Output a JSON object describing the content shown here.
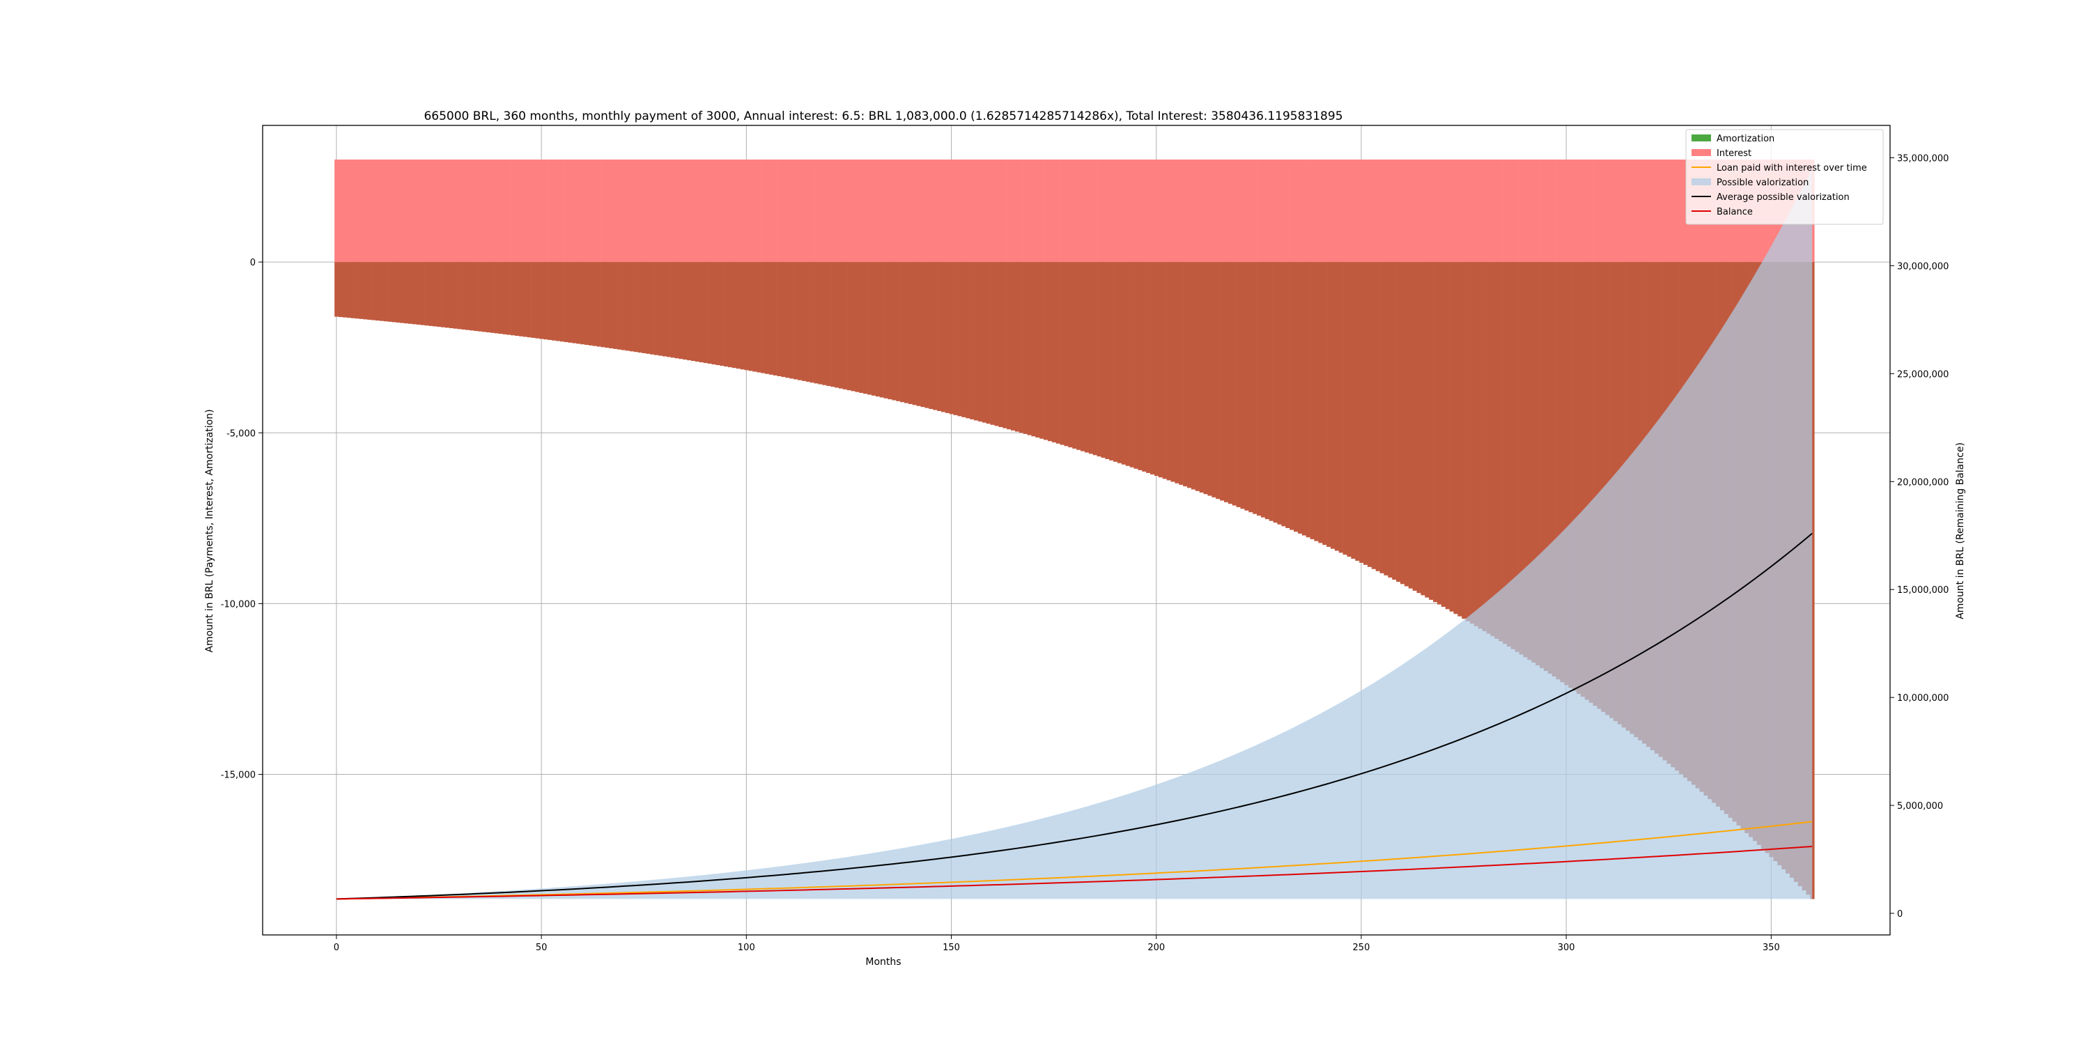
{
  "chart_data": {
    "type": "bar",
    "title": "665000 BRL, 360 months, monthly payment of 3000, Annual interest: 6.5: BRL 1,083,000.0 (1.6285714285714286x), Total Interest: 3580436.1195831895",
    "xlabel": "Months",
    "ylabel_left": "Amount in BRL (Payments, Interest, Amortization)",
    "ylabel_right": "Amount in BRL (Remaining Balance)",
    "xlim": [
      -18,
      379
    ],
    "ylim_left": [
      -19700,
      4000
    ],
    "ylim_right": [
      -1000000,
      36500000
    ],
    "grid": true,
    "legend_position": "upper right",
    "x_ticks": [
      0,
      50,
      100,
      150,
      200,
      250,
      300,
      350
    ],
    "y_left_ticks": [
      0,
      -5000,
      -10000,
      -15000
    ],
    "y_left_tick_labels": [
      "0",
      "-5,000",
      "-10,000",
      "-15,000"
    ],
    "y_right_ticks": [
      0,
      5000000,
      10000000,
      15000000,
      20000000,
      25000000,
      30000000,
      35000000
    ],
    "y_right_tick_labels": [
      "0",
      "5,000,000",
      "10,000,000",
      "15,000,000",
      "20,000,000",
      "25,000,000",
      "30,000,000",
      "35,000,000"
    ],
    "months": 360,
    "bars": {
      "payment": 3000,
      "amortization_month0": -1600,
      "amortization_month360": -18650
    },
    "lines": {
      "loan_paid_with_interest_end": 4250000,
      "average_possible_valorization_end": 17600000,
      "balance_start": 665000,
      "balance_end": 3100000,
      "possible_valorization_end": 34500000
    },
    "series": [
      {
        "name": "Amortization",
        "kind": "bar",
        "color": "#4aa83f"
      },
      {
        "name": "Interest",
        "kind": "bar",
        "color": "#ff8080"
      },
      {
        "name": "Loan paid with interest over time",
        "kind": "line",
        "color": "#ffa500"
      },
      {
        "name": "Possible valorization",
        "kind": "area",
        "color": "#b0cce4"
      },
      {
        "name": "Average possible valorization",
        "kind": "line",
        "color": "#000000"
      },
      {
        "name": "Balance",
        "kind": "line",
        "color": "#e00000"
      }
    ]
  }
}
